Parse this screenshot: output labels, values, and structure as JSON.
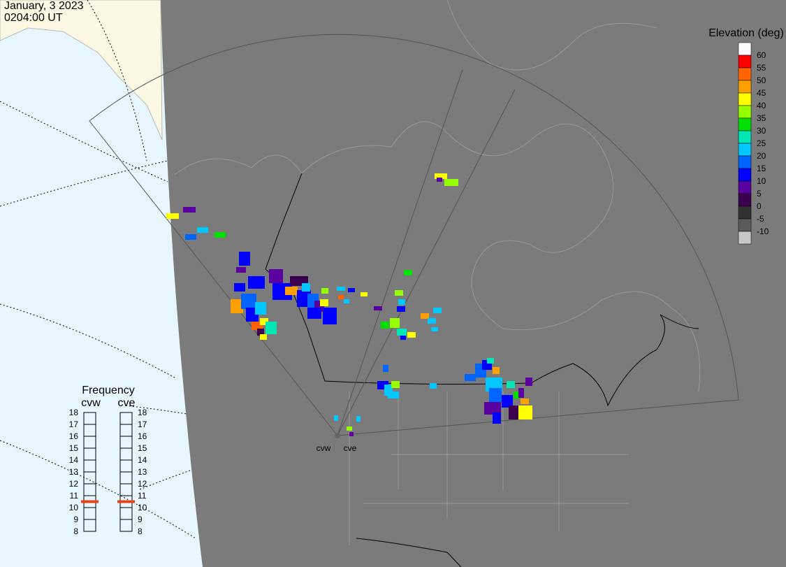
{
  "header": {
    "date": "January, 3 2023",
    "time": "0204:00 UT"
  },
  "elevation_scale": {
    "title": "Elevation (deg)",
    "colors": [
      "#ffffff",
      "#ff0000",
      "#ff6400",
      "#ffa000",
      "#ffff00",
      "#96ff00",
      "#00e000",
      "#00e6b4",
      "#00c8ff",
      "#0064ff",
      "#0000ff",
      "#5a00a0",
      "#3c0050",
      "#323232",
      "#5a5a5a",
      "#c8c8c8"
    ],
    "ticks": [
      60,
      55,
      50,
      45,
      40,
      35,
      30,
      25,
      20,
      15,
      10,
      5,
      0,
      -5,
      -10
    ]
  },
  "frequency": {
    "title": "Frequency",
    "range": [
      8,
      18
    ],
    "ticks": [
      18,
      17,
      16,
      15,
      14,
      13,
      12,
      11,
      10,
      9,
      8
    ],
    "radars": [
      {
        "name": "cvw",
        "value": 10.5
      },
      {
        "name": "cve",
        "value": 10.5
      }
    ]
  },
  "radar_sites": [
    "cvw",
    "cve"
  ]
}
